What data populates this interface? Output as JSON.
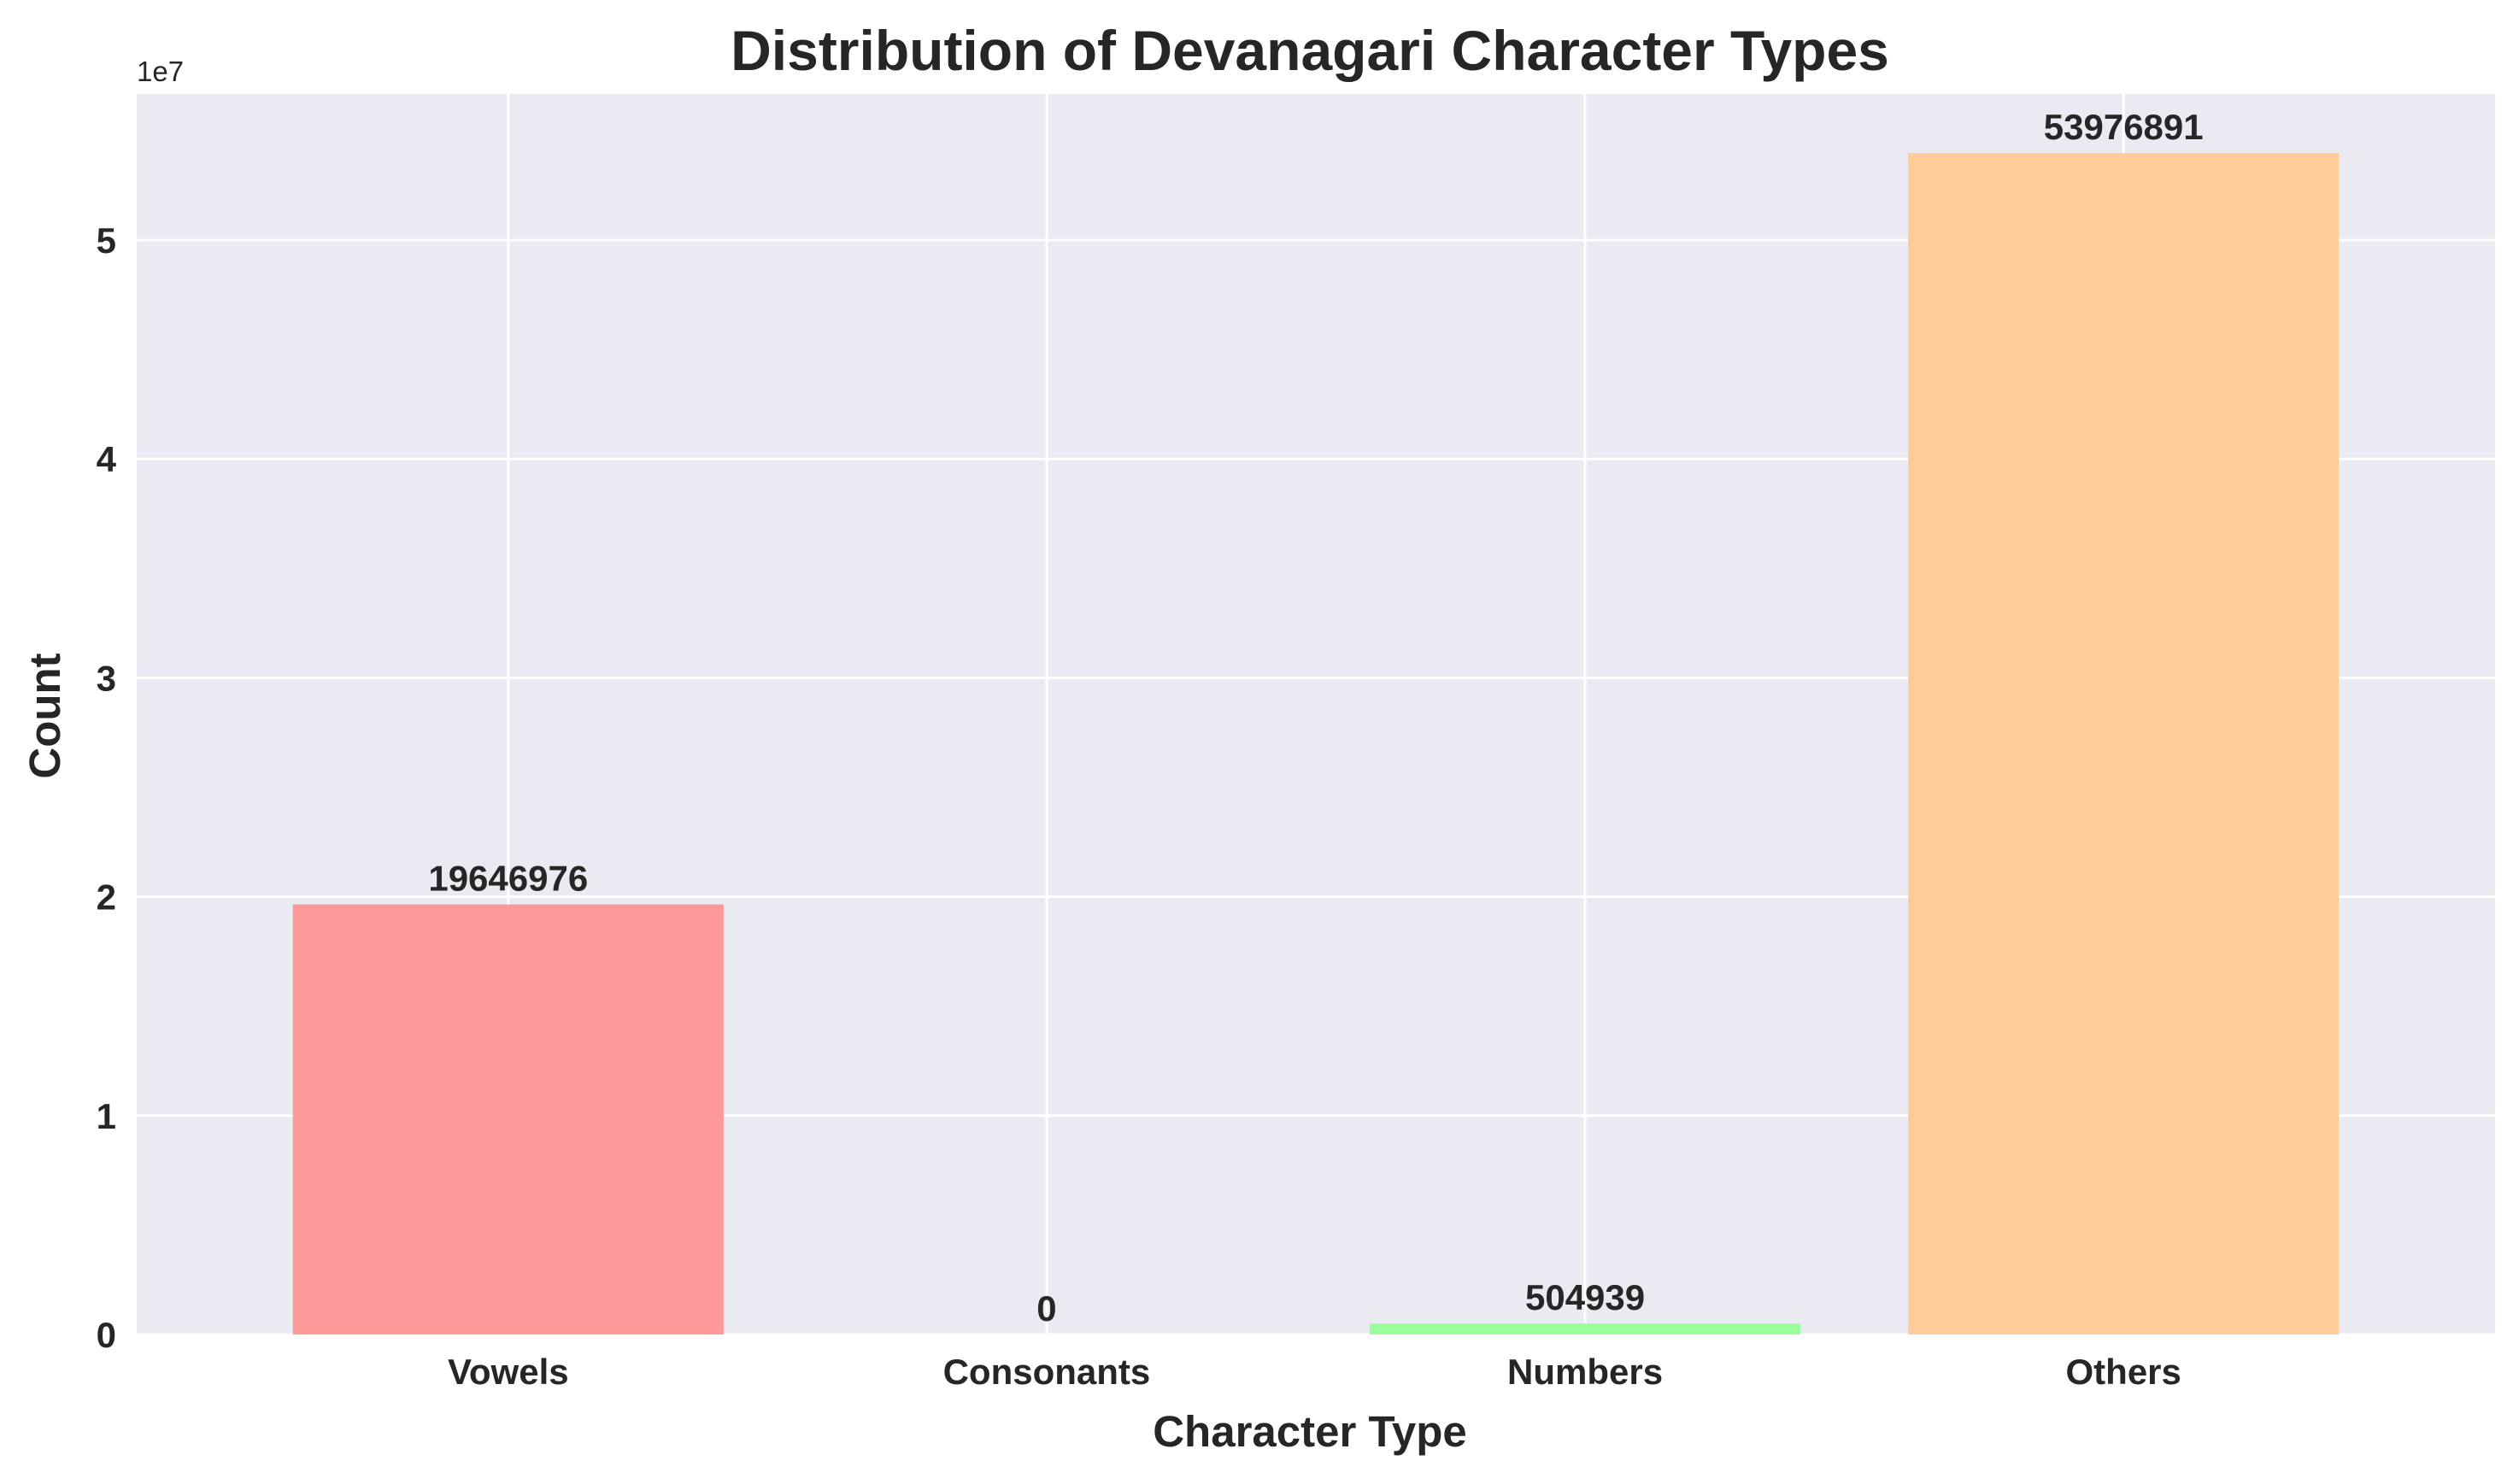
{
  "chart_data": {
    "type": "bar",
    "title": "Distribution of Devanagari Character Types",
    "xlabel": "Character Type",
    "ylabel": "Count",
    "categories": [
      "Vowels",
      "Consonants",
      "Numbers",
      "Others"
    ],
    "values": [
      19646976,
      0,
      504939,
      53976891
    ],
    "value_labels": [
      "19646976",
      "0",
      "504939",
      "53976891"
    ],
    "colors": [
      "#ff9999",
      "#66b3ff",
      "#99ff99",
      "#ffcc99"
    ],
    "y_offset_label": "1e7",
    "y_ticks": [
      0,
      10000000,
      20000000,
      30000000,
      40000000,
      50000000
    ],
    "y_tick_labels": [
      "0",
      "1",
      "2",
      "3",
      "4",
      "5"
    ],
    "ylim": [
      0,
      56675735
    ],
    "grid": true,
    "background": "#eaeaf2",
    "grid_color": "#ffffff"
  }
}
